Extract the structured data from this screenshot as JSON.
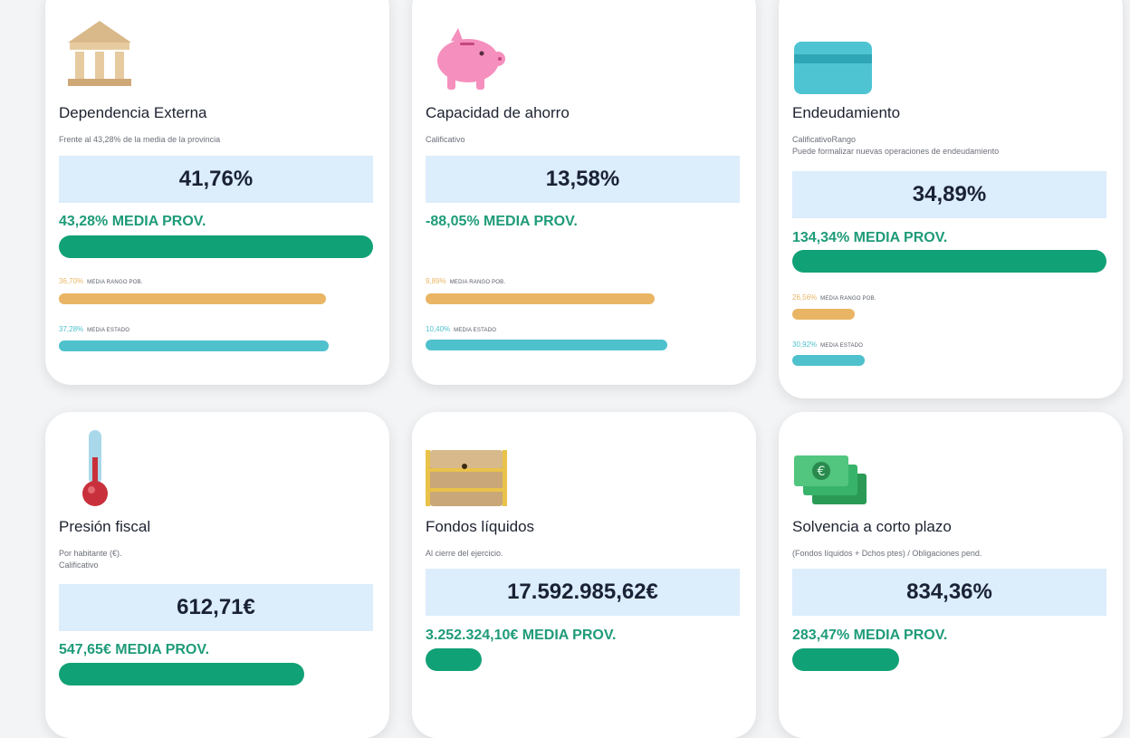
{
  "colors": {
    "green": "#11a176",
    "orange": "#e9b564",
    "teal": "#4fc1cd",
    "value_box": "#dcedfb"
  },
  "cards": [
    {
      "icon": "bank-building-icon",
      "title": "Dependencia Externa",
      "subtitle": [
        "Frente al 43,28% de la media de la provincia"
      ],
      "value": "41,76%",
      "media_prov": "43,28% MEDIA PROV.",
      "bar_prov_fraction": 1.0,
      "rango_pct": "36,70%",
      "rango_label": "MEDIA RANGO POB.",
      "rango_fraction": 0.85,
      "estado_pct": "37,28%",
      "estado_label": "MEDIA ESTADO",
      "estado_fraction": 0.86
    },
    {
      "icon": "piggy-bank-icon",
      "title": "Capacidad de ahorro",
      "subtitle": [
        "Calificativo"
      ],
      "value": "13,58%",
      "media_prov": "-88,05% MEDIA PROV.",
      "bar_prov_fraction": 0,
      "rango_pct": "9,89%",
      "rango_label": "MEDIA RANGO POB.",
      "rango_fraction": 0.73,
      "estado_pct": "10,40%",
      "estado_label": "MEDIA ESTADO",
      "estado_fraction": 0.77
    },
    {
      "icon": "credit-card-icon",
      "title": "Endeudamiento",
      "subtitle": [
        "CalificativoRango",
        "Puede formalizar nuevas operaciones de endeudamiento"
      ],
      "value": "34,89%",
      "media_prov": "134,34% MEDIA PROV.",
      "bar_prov_fraction": 1.0,
      "rango_pct": "26,56%",
      "rango_label": "MEDIA RANGO POB.",
      "rango_fraction": 0.2,
      "estado_pct": "30,92%",
      "estado_label": "MEDIA ESTADO",
      "estado_fraction": 0.23
    },
    {
      "icon": "thermometer-icon",
      "title": "Presión fiscal",
      "subtitle": [
        "Por habitante (€).",
        "Calificativo"
      ],
      "value": "612,71€",
      "media_prov": "547,65€ MEDIA PROV.",
      "bar_prov_fraction": 0.78
    },
    {
      "icon": "treasure-chest-icon",
      "title": "Fondos líquidos",
      "subtitle": [
        "Al cierre del ejercicio."
      ],
      "value": "17.592.985,62€",
      "media_prov": "3.252.324,10€ MEDIA PROV.",
      "bar_prov_fraction": 0.18
    },
    {
      "icon": "banknotes-euro-icon",
      "title": "Solvencia a corto plazo",
      "subtitle": [
        "(Fondos líquidos + Dchos ptes) / Obligaciones pend."
      ],
      "value": "834,36%",
      "media_prov": "283,47% MEDIA PROV.",
      "bar_prov_fraction": 0.34
    }
  ]
}
